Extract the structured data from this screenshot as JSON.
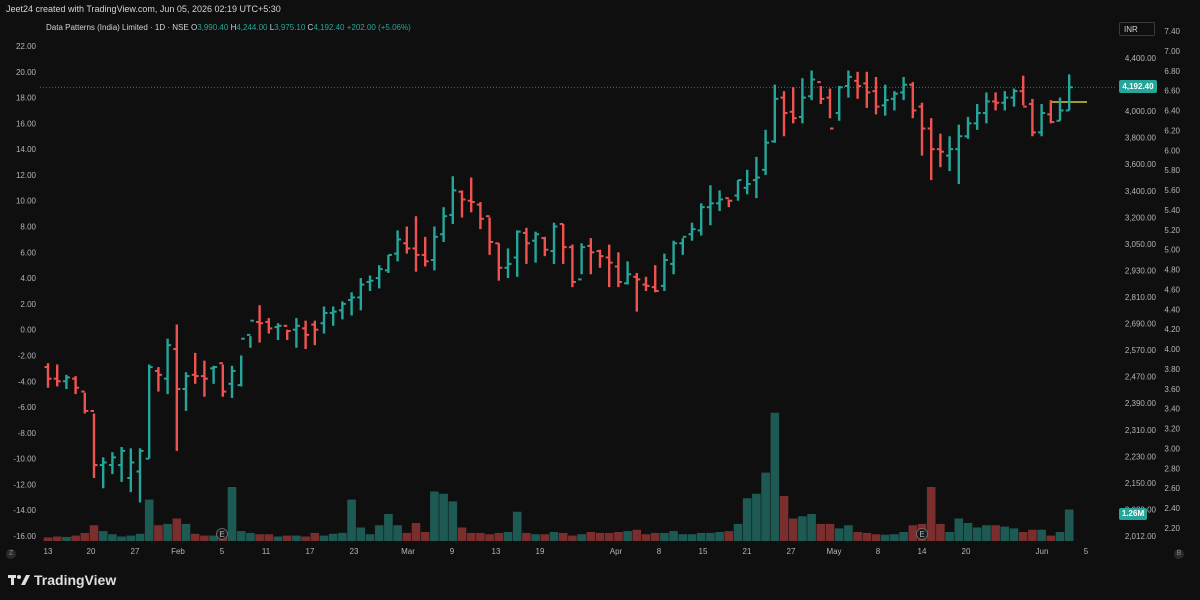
{
  "credit": "Jeet24 created with TradingView.com, Jun 05, 2026 02:19 UTC+5:30",
  "legend": {
    "symbol": "Data Patterns (India) Limited · 1D · NSE",
    "o_label": "O",
    "o": "3,990.40",
    "h_label": "H",
    "h": "4,244.00",
    "l_label": "L",
    "l": "3,975.10",
    "c_label": "C",
    "c": "4,192.40",
    "change": "+202.00 (+5.06%)"
  },
  "currency": "INR",
  "price_tag": "4,192.40",
  "volume_tag": "1.26M",
  "brand": "TradingView",
  "corner_left": "Z",
  "corner_right": "B",
  "colors": {
    "up": "#26a69a",
    "down": "#ef5350",
    "vol_up": "#1e5a54",
    "vol_down": "#7a2e2e",
    "hline": "#d9c441"
  },
  "chart_data": {
    "type": "ohlc-bar",
    "left_axis_ticks": [
      "22.00",
      "20.00",
      "18.00",
      "16.00",
      "14.00",
      "12.00",
      "10.00",
      "8.00",
      "6.00",
      "4.00",
      "2.00",
      "0.00",
      "-2.00",
      "-4.00",
      "-6.00",
      "-8.00",
      "-10.00",
      "-12.00",
      "-14.00",
      "-16.00"
    ],
    "price_axis_ticks": [
      "4,400.00",
      "4,200.00",
      "4,000.00",
      "3,800.00",
      "3,600.00",
      "3,400.00",
      "3,200.00",
      "3,050.00",
      "2,930.00",
      "2,810.00",
      "2,690.00",
      "2,570.00",
      "2,470.00",
      "2,390.00",
      "2,310.00",
      "2,230.00",
      "2,150.00",
      "2,080.00",
      "2,012.00"
    ],
    "right_axis_ticks": [
      "7.40",
      "7.00",
      "6.80",
      "6.60",
      "6.40",
      "6.20",
      "6.00",
      "5.80",
      "5.60",
      "5.40",
      "5.20",
      "5.00",
      "4.80",
      "4.60",
      "4.40",
      "4.20",
      "4.00",
      "3.80",
      "3.60",
      "3.40",
      "3.20",
      "3.00",
      "2.80",
      "2.60",
      "2.40",
      "2.20"
    ],
    "x_ticks": [
      "13",
      "20",
      "27",
      "Feb",
      "5",
      "11",
      "17",
      "23",
      "Mar",
      "9",
      "13",
      "19",
      "Apr",
      "8",
      "15",
      "21",
      "27",
      "May",
      "8",
      "14",
      "20",
      "Jun",
      "5"
    ],
    "event_markers": [
      "E",
      "E"
    ],
    "left_axis_range": [
      -16,
      22
    ],
    "last_close_level": 18.8,
    "bars": [
      [
        -2.9,
        -2.6,
        -4.5,
        -3.8,
        0.08
      ],
      [
        -3.8,
        -2.7,
        -4.4,
        -4.0,
        0.1
      ],
      [
        -4.0,
        -3.5,
        -4.6,
        -3.7,
        0.09
      ],
      [
        -3.8,
        -3.6,
        -5.0,
        -4.5,
        0.12
      ],
      [
        -4.8,
        -4.9,
        -6.5,
        -6.3,
        0.18
      ],
      [
        -6.3,
        -6.5,
        -11.5,
        -10.5,
        0.35
      ],
      [
        -10.5,
        -9.9,
        -12.3,
        -10.3,
        0.22
      ],
      [
        -10.5,
        -9.5,
        -11.2,
        -9.9,
        0.15
      ],
      [
        -10.5,
        -9.1,
        -11.8,
        -9.4,
        0.1
      ],
      [
        -11.5,
        -9.2,
        -12.6,
        -10.3,
        0.12
      ],
      [
        -11.0,
        -9.2,
        -13.4,
        -9.4,
        0.16
      ],
      [
        -10.0,
        -2.7,
        -10.0,
        -2.9,
        0.92
      ],
      [
        -3.2,
        -2.9,
        -4.8,
        -3.5,
        0.35
      ],
      [
        -3.8,
        -0.7,
        -5.0,
        -1.2,
        0.38
      ],
      [
        -1.5,
        0.4,
        -9.4,
        -4.6,
        0.5
      ],
      [
        -4.6,
        -3.3,
        -6.3,
        -3.6,
        0.38
      ],
      [
        -3.5,
        -1.8,
        -4.2,
        -3.6,
        0.16
      ],
      [
        -3.6,
        -2.4,
        -5.2,
        -3.8,
        0.12
      ],
      [
        -3.0,
        -2.8,
        -4.2,
        -2.9,
        0.12
      ],
      [
        -2.6,
        -2.7,
        -5.2,
        -4.8,
        0.1
      ],
      [
        -4.2,
        -2.8,
        -5.3,
        -3.2,
        1.2
      ],
      [
        -4.3,
        -2.0,
        -4.4,
        -0.7,
        0.22
      ],
      [
        -0.4,
        -0.5,
        -1.4,
        0.7,
        0.18
      ],
      [
        0.6,
        1.9,
        -1.0,
        0.5,
        0.15
      ],
      [
        0.6,
        0.9,
        -0.3,
        0.1,
        0.15
      ],
      [
        0.2,
        0.5,
        -0.8,
        0.3,
        0.1
      ],
      [
        0.3,
        0.0,
        -0.8,
        -0.1,
        0.12
      ],
      [
        0.0,
        0.9,
        -1.4,
        0.3,
        0.12
      ],
      [
        0.1,
        0.7,
        -1.5,
        -0.4,
        0.1
      ],
      [
        0.4,
        0.7,
        -1.2,
        0.0,
        0.18
      ],
      [
        0.5,
        1.8,
        -0.3,
        1.3,
        0.12
      ],
      [
        1.3,
        1.8,
        0.3,
        1.4,
        0.16
      ],
      [
        1.5,
        2.2,
        0.8,
        2.0,
        0.18
      ],
      [
        2.3,
        2.9,
        1.1,
        2.5,
        0.92
      ],
      [
        2.5,
        4.0,
        1.5,
        3.5,
        0.3
      ],
      [
        3.7,
        4.2,
        3.0,
        3.8,
        0.15
      ],
      [
        4.0,
        5.0,
        3.2,
        4.7,
        0.35
      ],
      [
        4.6,
        5.8,
        4.4,
        5.8,
        0.6
      ],
      [
        5.9,
        7.7,
        5.3,
        7.0,
        0.35
      ],
      [
        6.7,
        8.0,
        5.9,
        6.3,
        0.18
      ],
      [
        6.3,
        8.8,
        4.5,
        5.8,
        0.4
      ],
      [
        5.8,
        7.2,
        4.9,
        5.3,
        0.2
      ],
      [
        5.4,
        8.0,
        4.6,
        7.2,
        1.1
      ],
      [
        7.4,
        9.5,
        6.8,
        8.8,
        1.05
      ],
      [
        8.9,
        11.9,
        8.2,
        10.8,
        0.88
      ],
      [
        10.7,
        10.8,
        8.7,
        10.1,
        0.3
      ],
      [
        10.0,
        11.8,
        9.1,
        9.9,
        0.18
      ],
      [
        9.7,
        9.9,
        7.8,
        8.6,
        0.18
      ],
      [
        8.8,
        8.7,
        5.8,
        6.8,
        0.15
      ],
      [
        6.7,
        6.7,
        3.8,
        4.8,
        0.18
      ],
      [
        4.8,
        6.3,
        4.0,
        5.1,
        0.2
      ],
      [
        5.6,
        7.7,
        4.1,
        7.6,
        0.65
      ],
      [
        7.5,
        7.9,
        5.1,
        6.7,
        0.18
      ],
      [
        6.9,
        7.6,
        5.2,
        7.4,
        0.15
      ],
      [
        7.1,
        7.2,
        5.7,
        6.2,
        0.15
      ],
      [
        6.1,
        8.3,
        5.1,
        8.0,
        0.2
      ],
      [
        8.2,
        8.2,
        5.1,
        6.4,
        0.18
      ],
      [
        6.4,
        6.6,
        3.3,
        3.7,
        0.12
      ],
      [
        3.9,
        6.7,
        4.3,
        6.4,
        0.15
      ],
      [
        6.5,
        7.1,
        4.3,
        6.0,
        0.2
      ],
      [
        6.1,
        6.2,
        4.8,
        5.7,
        0.18
      ],
      [
        5.6,
        6.6,
        3.3,
        5.2,
        0.18
      ],
      [
        4.9,
        6.0,
        3.3,
        3.7,
        0.2
      ],
      [
        3.6,
        5.3,
        3.5,
        4.3,
        0.22
      ],
      [
        4.1,
        4.4,
        1.4,
        3.9,
        0.25
      ],
      [
        3.5,
        4.1,
        3.0,
        3.4,
        0.15
      ],
      [
        3.3,
        5.0,
        2.9,
        3.0,
        0.18
      ],
      [
        3.4,
        5.9,
        3.0,
        5.4,
        0.18
      ],
      [
        5.1,
        6.9,
        4.3,
        6.7,
        0.22
      ],
      [
        6.7,
        7.1,
        5.8,
        7.2,
        0.15
      ],
      [
        7.4,
        8.3,
        6.9,
        7.8,
        0.15
      ],
      [
        7.7,
        9.8,
        7.3,
        9.5,
        0.18
      ],
      [
        9.5,
        11.2,
        8.1,
        9.8,
        0.18
      ],
      [
        9.8,
        10.8,
        9.2,
        10.1,
        0.2
      ],
      [
        10.2,
        10.1,
        9.5,
        10.0,
        0.22
      ],
      [
        10.4,
        11.6,
        10.0,
        11.6,
        0.38
      ],
      [
        11.0,
        12.4,
        10.5,
        11.3,
        0.95
      ],
      [
        11.6,
        13.4,
        10.2,
        11.8,
        1.05
      ],
      [
        12.4,
        15.5,
        12.0,
        14.5,
        1.52
      ],
      [
        14.6,
        19.0,
        14.5,
        17.9,
        2.85
      ],
      [
        18.0,
        18.5,
        15.0,
        16.8,
        1.0
      ],
      [
        16.9,
        18.8,
        16.0,
        16.4,
        0.5
      ],
      [
        16.5,
        19.5,
        16.0,
        18.0,
        0.55
      ],
      [
        18.1,
        20.1,
        17.8,
        19.4,
        0.6
      ],
      [
        19.2,
        18.9,
        17.5,
        17.9,
        0.38
      ],
      [
        18.0,
        18.7,
        16.4,
        15.6,
        0.38
      ],
      [
        16.8,
        18.9,
        16.2,
        18.8,
        0.28
      ],
      [
        18.9,
        20.1,
        18.0,
        19.6,
        0.35
      ],
      [
        19.3,
        20.0,
        17.9,
        18.9,
        0.2
      ],
      [
        19.1,
        20.0,
        17.2,
        18.4,
        0.18
      ],
      [
        18.5,
        19.6,
        16.7,
        17.3,
        0.15
      ],
      [
        17.4,
        19.0,
        16.6,
        17.8,
        0.14
      ],
      [
        17.9,
        18.5,
        17.0,
        18.3,
        0.15
      ],
      [
        18.4,
        19.6,
        17.8,
        19.0,
        0.2
      ],
      [
        19.0,
        19.2,
        16.4,
        17.0,
        0.35
      ],
      [
        17.3,
        17.6,
        13.5,
        15.6,
        0.38
      ],
      [
        15.6,
        16.4,
        11.6,
        14.0,
        1.2
      ],
      [
        14.0,
        15.2,
        12.6,
        13.8,
        0.38
      ],
      [
        13.5,
        15.0,
        12.3,
        14.0,
        0.2
      ],
      [
        14.0,
        15.9,
        11.3,
        15.0,
        0.5
      ],
      [
        15.0,
        16.5,
        14.8,
        16.0,
        0.4
      ],
      [
        16.0,
        17.5,
        15.5,
        16.8,
        0.3
      ],
      [
        16.8,
        18.4,
        16.0,
        17.7,
        0.35
      ],
      [
        17.7,
        18.4,
        17.0,
        17.6,
        0.35
      ],
      [
        17.6,
        18.5,
        17.0,
        18.0,
        0.32
      ],
      [
        18.0,
        18.7,
        17.3,
        18.5,
        0.28
      ],
      [
        18.5,
        19.7,
        17.4,
        17.3,
        0.2
      ],
      [
        17.5,
        17.9,
        15.0,
        15.3,
        0.25
      ],
      [
        15.3,
        17.5,
        15.0,
        16.8,
        0.25
      ],
      [
        16.7,
        17.8,
        16.0,
        16.1,
        0.12
      ],
      [
        16.2,
        18.0,
        16.2,
        17.0,
        0.2
      ],
      [
        17.0,
        19.8,
        17.0,
        18.8,
        0.7
      ]
    ]
  }
}
